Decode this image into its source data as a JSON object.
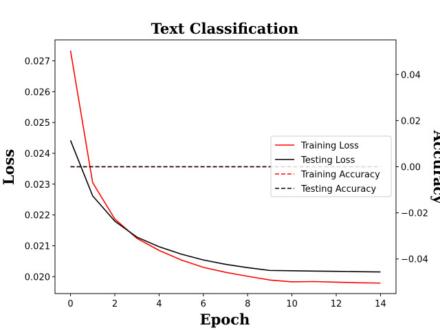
{
  "chart_data": {
    "type": "line",
    "title": "Text Classification",
    "xlabel": "Epoch",
    "ylabel": "Loss",
    "y2label": "Accuracy",
    "xlim": [
      -0.7,
      14.7
    ],
    "ylim": [
      0.01945,
      0.02768
    ],
    "y2lim": [
      -0.055,
      0.055
    ],
    "xticks": [
      0,
      2,
      4,
      6,
      8,
      10,
      12,
      14
    ],
    "yticks": [
      0.02,
      0.021,
      0.022,
      0.023,
      0.024,
      0.025,
      0.026,
      0.027
    ],
    "ytick_labels": [
      "0.020",
      "0.021",
      "0.022",
      "0.023",
      "0.024",
      "0.025",
      "0.026",
      "0.027"
    ],
    "y2ticks": [
      -0.04,
      -0.02,
      0.0,
      0.02,
      0.04
    ],
    "y2tick_labels": [
      "−0.04",
      "−0.02",
      "0.00",
      "0.02",
      "0.04"
    ],
    "x": [
      0,
      1,
      2,
      3,
      4,
      5,
      6,
      7,
      8,
      9,
      10,
      11,
      12,
      13,
      14
    ],
    "legend_position": "center-right",
    "series": [
      {
        "name": "Training Loss",
        "axis": "left",
        "color": "#ff0000",
        "dash": "solid",
        "values": [
          0.02733,
          0.02305,
          0.02187,
          0.02124,
          0.02085,
          0.02054,
          0.0203,
          0.02014,
          0.02001,
          0.01989,
          0.01983,
          0.01984,
          0.01982,
          0.0198,
          0.01979
        ]
      },
      {
        "name": "Testing Loss",
        "axis": "left",
        "color": "#000000",
        "dash": "solid",
        "values": [
          0.02442,
          0.02262,
          0.0218,
          0.02128,
          0.02097,
          0.02073,
          0.02054,
          0.0204,
          0.02029,
          0.0202,
          0.02019,
          0.02018,
          0.02017,
          0.02016,
          0.02015
        ]
      },
      {
        "name": "Training Accuracy",
        "axis": "right",
        "color": "#ff0000",
        "dash": "dashed",
        "values": [
          0,
          0,
          0,
          0,
          0,
          0,
          0,
          0,
          0,
          0,
          0,
          0,
          0,
          0,
          0
        ]
      },
      {
        "name": "Testing Accuracy",
        "axis": "right",
        "color": "#000000",
        "dash": "dashed",
        "values": [
          0,
          0,
          0,
          0,
          0,
          0,
          0,
          0,
          0,
          0,
          0,
          0,
          0,
          0,
          0
        ]
      }
    ]
  }
}
